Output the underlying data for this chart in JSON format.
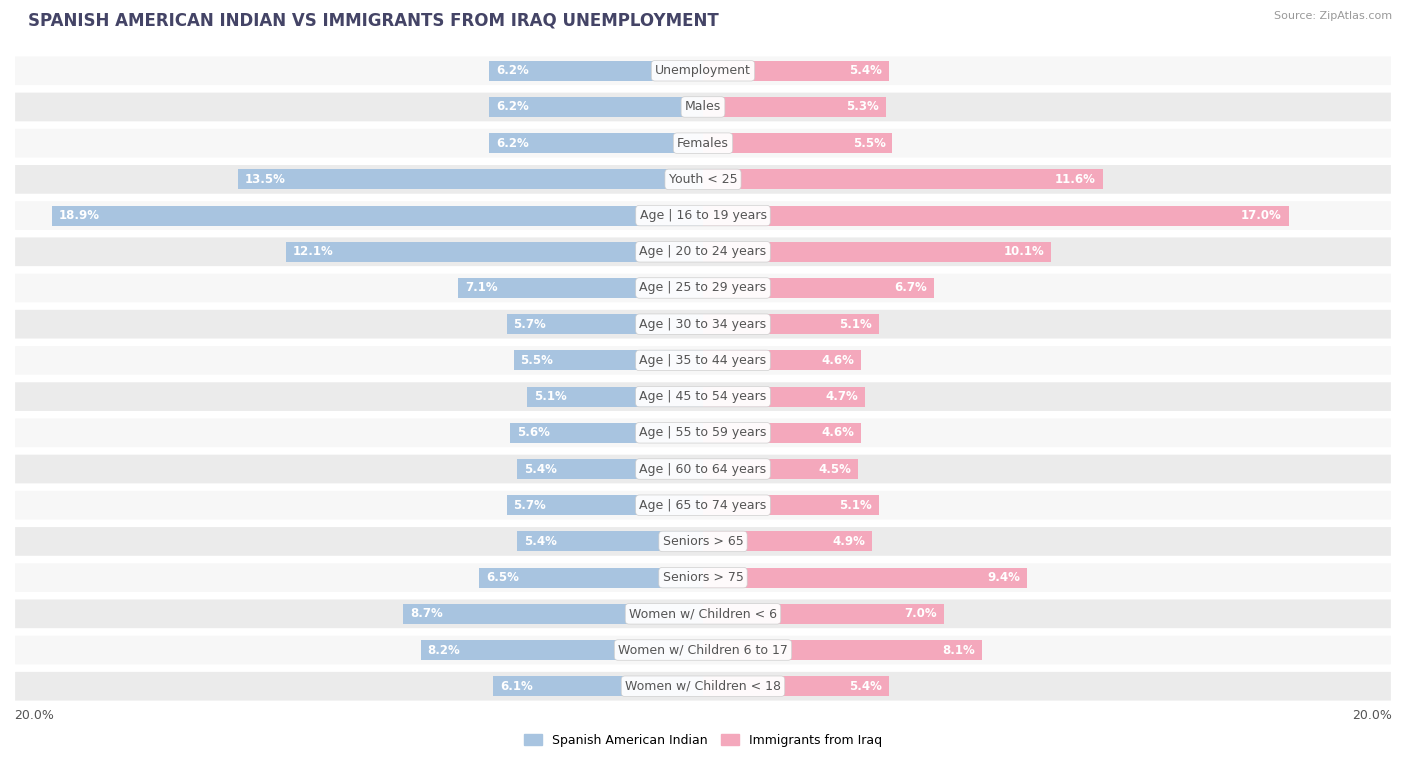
{
  "title": "SPANISH AMERICAN INDIAN VS IMMIGRANTS FROM IRAQ UNEMPLOYMENT",
  "source": "Source: ZipAtlas.com",
  "categories": [
    "Unemployment",
    "Males",
    "Females",
    "Youth < 25",
    "Age | 16 to 19 years",
    "Age | 20 to 24 years",
    "Age | 25 to 29 years",
    "Age | 30 to 34 years",
    "Age | 35 to 44 years",
    "Age | 45 to 54 years",
    "Age | 55 to 59 years",
    "Age | 60 to 64 years",
    "Age | 65 to 74 years",
    "Seniors > 65",
    "Seniors > 75",
    "Women w/ Children < 6",
    "Women w/ Children 6 to 17",
    "Women w/ Children < 18"
  ],
  "left_values": [
    6.2,
    6.2,
    6.2,
    13.5,
    18.9,
    12.1,
    7.1,
    5.7,
    5.5,
    5.1,
    5.6,
    5.4,
    5.7,
    5.4,
    6.5,
    8.7,
    8.2,
    6.1
  ],
  "right_values": [
    5.4,
    5.3,
    5.5,
    11.6,
    17.0,
    10.1,
    6.7,
    5.1,
    4.6,
    4.7,
    4.6,
    4.5,
    5.1,
    4.9,
    9.4,
    7.0,
    8.1,
    5.4
  ],
  "left_color": "#a8c4e0",
  "right_color": "#f4a8bc",
  "left_label": "Spanish American Indian",
  "right_label": "Immigrants from Iraq",
  "axis_max": 20.0,
  "background_color": "#ffffff",
  "row_bg_light": "#f7f7f7",
  "row_bg_dark": "#ebebeb",
  "separator_color": "#d8d8d8",
  "title_fontsize": 12,
  "label_fontsize": 9,
  "value_fontsize": 8.5
}
